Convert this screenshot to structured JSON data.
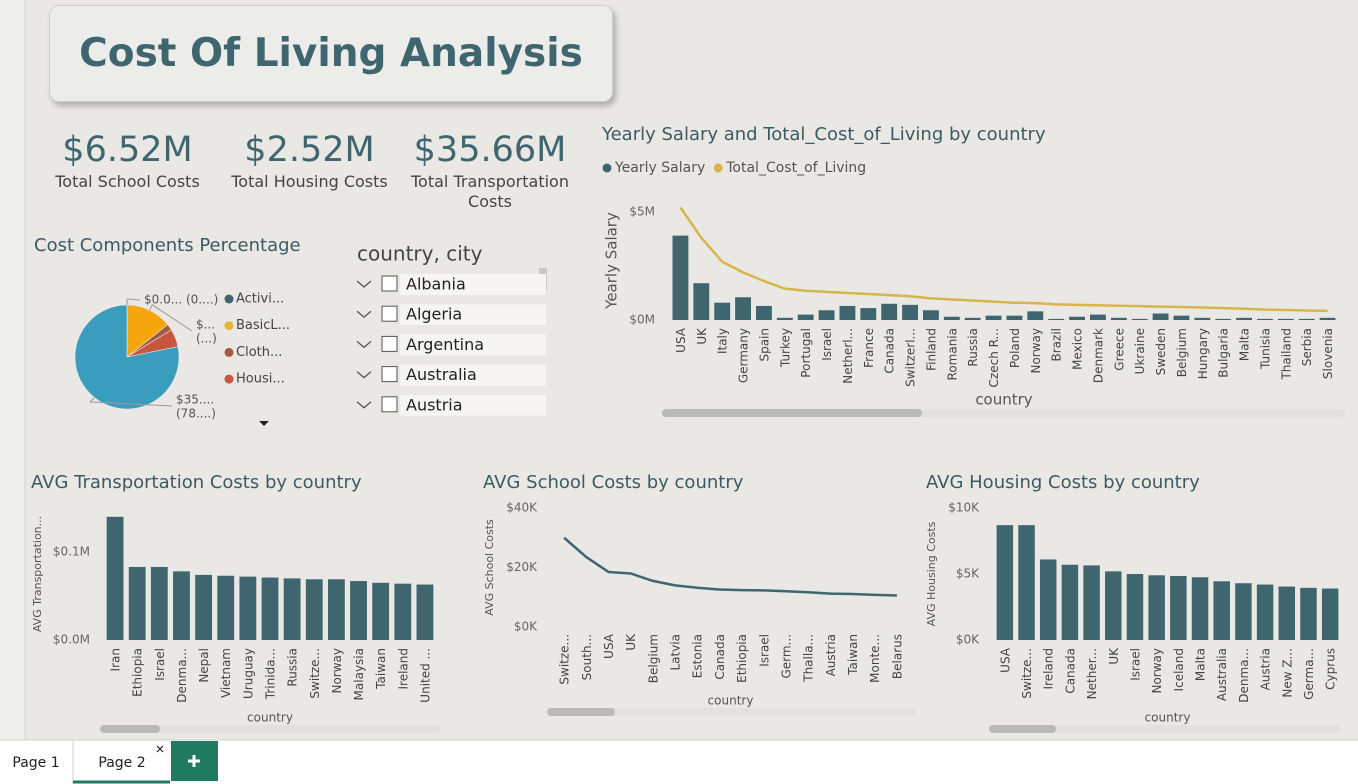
{
  "title": "Cost Of Living Analysis",
  "cards": [
    {
      "value": "$6.52M",
      "label": "Total School Costs"
    },
    {
      "value": "$2.52M",
      "label": "Total Housing Costs"
    },
    {
      "value": "$35.66M",
      "label": "Total Transportation Costs"
    }
  ],
  "slicer": {
    "title": "country, city",
    "items": [
      "Albania",
      "Algeria",
      "Argentina",
      "Australia",
      "Austria"
    ]
  },
  "tabs": [
    "Page 1",
    "Page 2"
  ],
  "chart_data": [
    {
      "type": "pie",
      "title": "Cost Components Percentage",
      "categories": [
        "Activi...",
        "BasicL...",
        "Cloth...",
        "Housi...",
        null
      ],
      "values": [
        20000,
        6500000,
        900000,
        2520000,
        35660000
      ],
      "value_labels": [
        [
          "$0.0...",
          "(0....)"
        ],
        [
          "$...",
          "(...)"
        ],
        null,
        null,
        [
          "$35....",
          "(78....)"
        ]
      ],
      "colors": [
        "#3f666f",
        "#f5a60c",
        "#a65a45",
        "#c8553d",
        "#3a9dbe"
      ],
      "legend_colors": [
        "#3f666f",
        "#e8b53a",
        "#a65a45",
        "#c8553d"
      ]
    },
    {
      "type": "combo",
      "title": "Yearly Salary and Total_Cost_of_Living by country",
      "y_label": "Yearly Salary",
      "x_label": "country",
      "categories": [
        "USA",
        "UK",
        "Italy",
        "Germany",
        "Spain",
        "Turkey",
        "Portugal",
        "Israel",
        "Netherl...",
        "France",
        "Canada",
        "Switzerl...",
        "Finland",
        "Romania",
        "Russia",
        "Czech R...",
        "Poland",
        "Norway",
        "Brazil",
        "Mexico",
        "Denmark",
        "Greece",
        "Ukraine",
        "Sweden",
        "Belgium",
        "Hungary",
        "Bulgaria",
        "Malta",
        "Tunisia",
        "Thailand",
        "Serbia",
        "Slovenia"
      ],
      "series": [
        {
          "name": "Yearly Salary",
          "color": "#3f666f",
          "values": [
            3900000,
            1700000,
            800000,
            1050000,
            650000,
            100000,
            250000,
            450000,
            650000,
            550000,
            750000,
            700000,
            450000,
            150000,
            100000,
            200000,
            200000,
            400000,
            50000,
            150000,
            250000,
            100000,
            50000,
            300000,
            200000,
            100000,
            50000,
            100000,
            50000,
            50000,
            50000,
            100000
          ]
        },
        {
          "name": "Total_Cost_of_Living",
          "color": "#d9b44a",
          "values": [
            5200000,
            3800000,
            2700000,
            2200000,
            1800000,
            1450000,
            1350000,
            1300000,
            1250000,
            1200000,
            1150000,
            1100000,
            1000000,
            950000,
            900000,
            850000,
            800000,
            780000,
            720000,
            700000,
            680000,
            660000,
            640000,
            620000,
            600000,
            580000,
            550000,
            520000,
            480000,
            460000,
            440000,
            420000
          ]
        }
      ],
      "ylim": [
        0,
        5500000
      ],
      "yticks": [
        {
          "value": 0,
          "label": "$0M"
        },
        {
          "value": 5000000,
          "label": "$5M"
        }
      ],
      "grid": false
    },
    {
      "type": "bar",
      "title": "AVG Transportation Costs by country",
      "y_label": "AVG Transportation...",
      "x_label": "country",
      "categories": [
        "Iran",
        "Ethiopia",
        "Israel",
        "Denma...",
        "Nepal",
        "Vietnam",
        "Uruguay",
        "Trinida...",
        "Russia",
        "Switze...",
        "Norway",
        "Malaysia",
        "Taiwan",
        "Ireland",
        "United ..."
      ],
      "values": [
        140000,
        83000,
        83000,
        78000,
        74000,
        73000,
        72000,
        71000,
        70000,
        69000,
        69000,
        67000,
        65000,
        64000,
        63000
      ],
      "color": "#3f666f",
      "ylim": [
        0,
        150000
      ],
      "yticks": [
        {
          "value": 0,
          "label": "$0.0M"
        },
        {
          "value": 100000,
          "label": "$0.1M"
        }
      ],
      "grid": false
    },
    {
      "type": "line",
      "title": "AVG School Costs by country",
      "y_label": "AVG School Costs",
      "x_label": "country",
      "categories": [
        "Switze...",
        "South...",
        "USA",
        "UK",
        "Belgium",
        "Latvia",
        "Estonia",
        "Canada",
        "Ethiopia",
        "Israel",
        "Germ...",
        "Thalla...",
        "Austria",
        "Taiwan",
        "Monte...",
        "Belarus"
      ],
      "values": [
        30000,
        23500,
        18500,
        18000,
        15500,
        14000,
        13200,
        12600,
        12400,
        12300,
        12000,
        11700,
        11200,
        11100,
        10800,
        10600
      ],
      "color": "#3f666f",
      "ylim": [
        0,
        40000
      ],
      "yticks": [
        {
          "value": 0,
          "label": "$0K"
        },
        {
          "value": 20000,
          "label": "$20K"
        },
        {
          "value": 40000,
          "label": "$40K"
        }
      ],
      "grid": false
    },
    {
      "type": "bar",
      "title": "AVG Housing Costs by country",
      "y_label": "AVG Housing Costs",
      "x_label": "country",
      "categories": [
        "USA",
        "Switze...",
        "Ireland",
        "Canada",
        "Nether...",
        "UK",
        "Israel",
        "Norway",
        "Iceland",
        "Malta",
        "Australia",
        "Denma...",
        "Austria",
        "New Z...",
        "Germa...",
        "Cyprus"
      ],
      "values": [
        8700,
        8700,
        6100,
        5700,
        5650,
        5200,
        5000,
        4900,
        4850,
        4750,
        4450,
        4300,
        4200,
        4050,
        3950,
        3900
      ],
      "color": "#3f666f",
      "ylim": [
        0,
        10000
      ],
      "yticks": [
        {
          "value": 0,
          "label": "$0K"
        },
        {
          "value": 5000,
          "label": "$5K"
        },
        {
          "value": 10000,
          "label": "$10K"
        }
      ],
      "grid": false
    }
  ]
}
